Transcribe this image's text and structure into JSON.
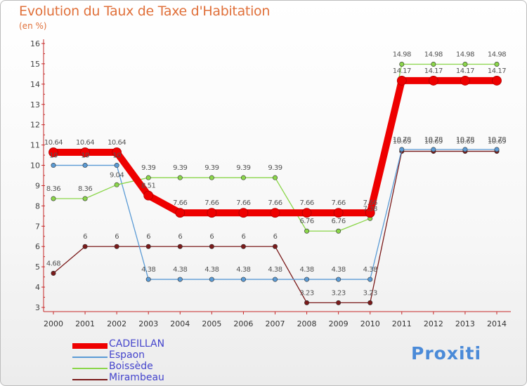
{
  "title": "Evolution du Taux de Taxe d'Habitation",
  "unit_label": "(en %)",
  "brand": "Proxiti",
  "chart_data": {
    "type": "line",
    "x": [
      "2000",
      "2001",
      "2002",
      "2003",
      "2004",
      "2005",
      "2006",
      "2007",
      "2008",
      "2009",
      "2010",
      "2011",
      "2012",
      "2013",
      "2014"
    ],
    "ylim": [
      3,
      16
    ],
    "yticks": [
      3,
      4,
      5,
      6,
      7,
      8,
      9,
      10,
      11,
      12,
      13,
      14,
      15,
      16
    ],
    "grid": false,
    "legend_position": "bottom-left",
    "series": [
      {
        "name": "CADEILLAN",
        "color": "#ee0000",
        "values": [
          10.64,
          10.64,
          10.64,
          8.51,
          7.66,
          7.66,
          7.66,
          7.66,
          7.66,
          7.66,
          7.66,
          14.17,
          14.17,
          14.17,
          14.17
        ],
        "labels": [
          "10.64",
          "10.64",
          "10.64",
          "8.51",
          "7.66",
          "7.66",
          "7.66",
          "7.66",
          "7.66",
          "7.66",
          "7.66",
          "14.17",
          "14.17",
          "14.17",
          "14.17"
        ]
      },
      {
        "name": "Espaon",
        "color": "#5b9bd5",
        "values": [
          10,
          10,
          10,
          4.38,
          4.38,
          4.38,
          4.38,
          4.38,
          4.38,
          4.38,
          4.38,
          10.78,
          10.78,
          10.78,
          10.78
        ],
        "labels": [
          "10",
          "10",
          "10",
          "4.38",
          "4.38",
          "4.38",
          "4.38",
          "4.38",
          "4.38",
          "4.38",
          "4.38",
          "10.78",
          "10.78",
          "10.78",
          "10.78"
        ]
      },
      {
        "name": "Boissède",
        "color": "#8bd64a",
        "values": [
          8.36,
          8.36,
          9.04,
          9.39,
          9.39,
          9.39,
          9.39,
          9.39,
          6.76,
          6.76,
          7.38,
          14.98,
          14.98,
          14.98,
          14.98
        ],
        "labels": [
          "8.36",
          "8.36",
          "9.04",
          "9.39",
          "9.39",
          "9.39",
          "9.39",
          "9.39",
          "6.76",
          "6.76",
          "7.38",
          "14.98",
          "14.98",
          "14.98",
          "14.98"
        ]
      },
      {
        "name": "Mirambeau",
        "color": "#7a1a1a",
        "values": [
          4.68,
          6,
          6,
          6,
          6,
          6,
          6,
          6,
          3.23,
          3.23,
          3.23,
          10.69,
          10.69,
          10.69,
          10.69
        ],
        "labels": [
          "4.68",
          "6",
          "6",
          "6",
          "6",
          "6",
          "6",
          "6",
          "3.23",
          "3.23",
          "3.23",
          "10.69",
          "10.69",
          "10.69",
          "10.69"
        ]
      }
    ]
  }
}
